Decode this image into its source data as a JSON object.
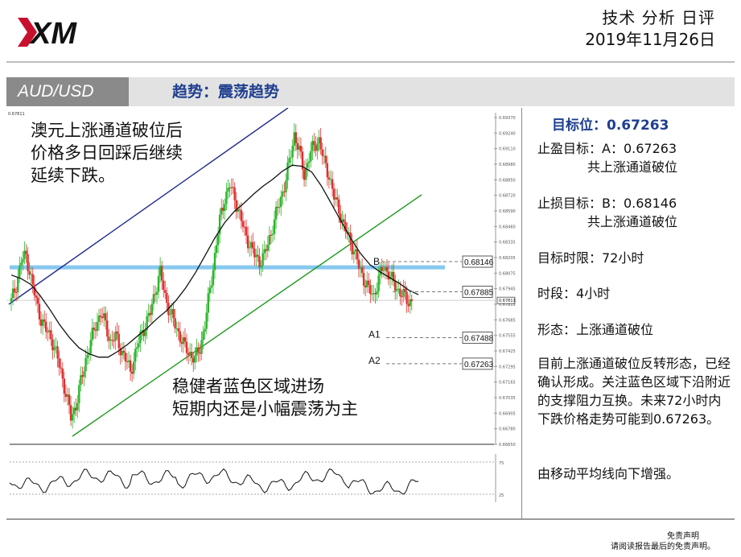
{
  "header": {
    "logo_text": "XM",
    "title": "技术 分析 日评",
    "date": "2019年11月26日"
  },
  "bar": {
    "pair": "AUD/USD",
    "trend": "趋势：震荡趋势"
  },
  "overlays": {
    "top_left": [
      "澳元上涨通道破位后",
      "价格多日回踩后继续",
      "延续下跌。"
    ],
    "bottom": [
      "稳健者蓝色区域进场",
      "短期内还是小幅震荡为主"
    ]
  },
  "panel": {
    "target": "目标位：0.67263",
    "tp_line1": "止盈目标：A：0.67263",
    "tp_line2": "共上涨通道破位",
    "sl_line1": "止损目标：B：0.68146",
    "sl_line2": "共上涨通道破位",
    "time_limit": "目标时限：72小时",
    "timeframe": "时段：4小时",
    "pattern": "形态：上涨通道破位",
    "analysis": "目前上涨通道破位反转形态，已经确认形成。关注蓝色区域下沿附近的支撑阻力互换。未来72小时内下跌价格走势可能到0.67263。",
    "ma_note": "由移动平均线向下增强。"
  },
  "footer": {
    "line1": "免责声明",
    "line2": "请阅读报告最后的免责声明。"
  },
  "chart_data": {
    "type": "candlestick",
    "title": "",
    "corner_label": "0.67811",
    "y_ticks": [
      "0.69370",
      "0.69240",
      "0.69110",
      "0.68980",
      "0.68850",
      "0.68720",
      "0.68590",
      "0.68460",
      "0.68335",
      "0.68205",
      "0.68075",
      "0.67945",
      "0.67815",
      "0.67685",
      "0.67555",
      "0.67425",
      "0.67295",
      "0.67165",
      "0.67035",
      "0.66905",
      "0.66780",
      "0.66650"
    ],
    "ylim": [
      0.6658,
      0.6942
    ],
    "current_price": "0.67811",
    "levels": [
      {
        "name": "B",
        "value": 0.68146,
        "label": "0.68146",
        "show_name": true
      },
      {
        "name": "",
        "value": 0.67885,
        "label": "0.67885",
        "show_name": false
      },
      {
        "name": "A1",
        "value": 0.67488,
        "label": "0.67488",
        "show_name": true
      },
      {
        "name": "A2",
        "value": 0.67263,
        "label": "0.67263",
        "show_name": true
      }
    ],
    "support_zone": 0.681,
    "close_series": [
      0.678,
      0.6795,
      0.6815,
      0.682,
      0.68,
      0.678,
      0.6765,
      0.6755,
      0.675,
      0.6735,
      0.672,
      0.67,
      0.668,
      0.669,
      0.671,
      0.673,
      0.6745,
      0.676,
      0.677,
      0.676,
      0.6745,
      0.675,
      0.674,
      0.673,
      0.672,
      0.6735,
      0.675,
      0.676,
      0.677,
      0.679,
      0.6805,
      0.6785,
      0.677,
      0.676,
      0.675,
      0.674,
      0.6735,
      0.673,
      0.674,
      0.676,
      0.679,
      0.682,
      0.685,
      0.687,
      0.688,
      0.687,
      0.6855,
      0.684,
      0.683,
      0.682,
      0.6815,
      0.682,
      0.6835,
      0.685,
      0.6865,
      0.688,
      0.69,
      0.6925,
      0.691,
      0.689,
      0.6905,
      0.6915,
      0.692,
      0.69,
      0.689,
      0.687,
      0.686,
      0.6845,
      0.6835,
      0.6825,
      0.681,
      0.68,
      0.679,
      0.6785,
      0.68,
      0.681,
      0.6805,
      0.6795,
      0.679,
      0.6785,
      0.678,
      0.6782
    ],
    "ma_series": [
      0.6803,
      0.68,
      0.6795,
      0.6785,
      0.6773,
      0.676,
      0.6749,
      0.674,
      0.6735,
      0.6732,
      0.6732,
      0.6737,
      0.6743,
      0.675,
      0.6757,
      0.6765,
      0.6772,
      0.6781,
      0.6792,
      0.6805,
      0.682,
      0.6835,
      0.6848,
      0.6858,
      0.6865,
      0.6873,
      0.688,
      0.6886,
      0.6893,
      0.6898,
      0.6897,
      0.6892,
      0.688,
      0.6865,
      0.685,
      0.6835,
      0.6822,
      0.6812,
      0.6806,
      0.6801,
      0.6796,
      0.679,
      0.6786
    ],
    "oscillator": {
      "levels": [
        "75",
        "25"
      ]
    }
  }
}
